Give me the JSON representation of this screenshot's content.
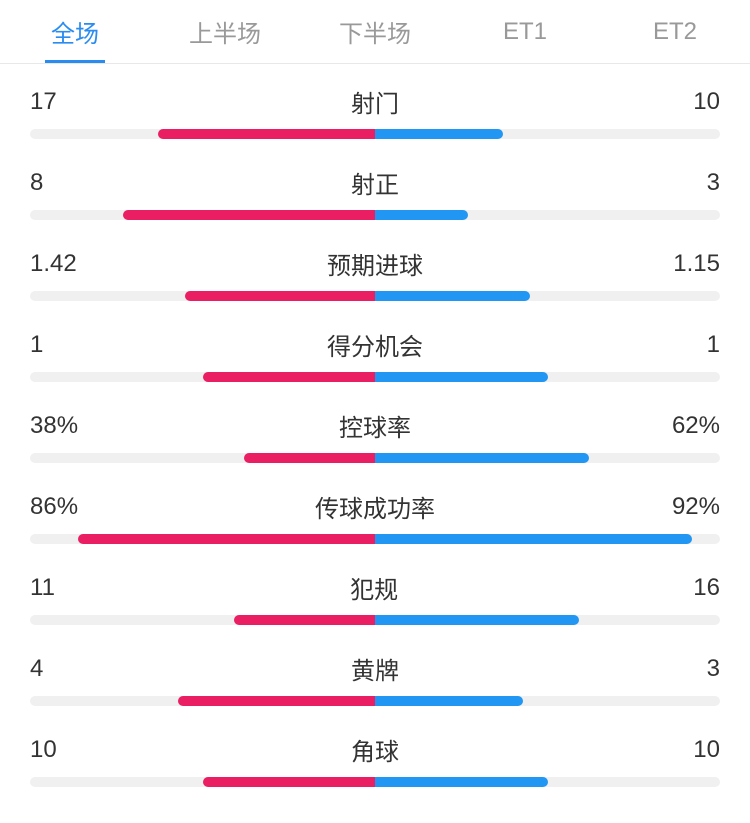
{
  "colors": {
    "active_tab": "#2a8cf0",
    "inactive_tab": "#999999",
    "left_bar": "#e91e63",
    "right_bar": "#2196f3",
    "bar_track": "#f0f0f0",
    "text": "#333333",
    "border": "#e8e8e8"
  },
  "tabs": [
    {
      "label": "全场",
      "active": true
    },
    {
      "label": "上半场",
      "active": false
    },
    {
      "label": "下半场",
      "active": false
    },
    {
      "label": "ET1",
      "active": false
    },
    {
      "label": "ET2",
      "active": false
    }
  ],
  "stats": [
    {
      "label": "射门",
      "left_value": "17",
      "right_value": "10",
      "left_pct": 63,
      "right_pct": 37
    },
    {
      "label": "射正",
      "left_value": "8",
      "right_value": "3",
      "left_pct": 73,
      "right_pct": 27
    },
    {
      "label": "预期进球",
      "left_value": "1.42",
      "right_value": "1.15",
      "left_pct": 55,
      "right_pct": 45
    },
    {
      "label": "得分机会",
      "left_value": "1",
      "right_value": "1",
      "left_pct": 50,
      "right_pct": 50
    },
    {
      "label": "控球率",
      "left_value": "38%",
      "right_value": "62%",
      "left_pct": 38,
      "right_pct": 62
    },
    {
      "label": "传球成功率",
      "left_value": "86%",
      "right_value": "92%",
      "left_pct": 86,
      "right_pct": 92
    },
    {
      "label": "犯规",
      "left_value": "11",
      "right_value": "16",
      "left_pct": 41,
      "right_pct": 59
    },
    {
      "label": "黄牌",
      "left_value": "4",
      "right_value": "3",
      "left_pct": 57,
      "right_pct": 43
    },
    {
      "label": "角球",
      "left_value": "10",
      "right_value": "10",
      "left_pct": 50,
      "right_pct": 50
    }
  ]
}
